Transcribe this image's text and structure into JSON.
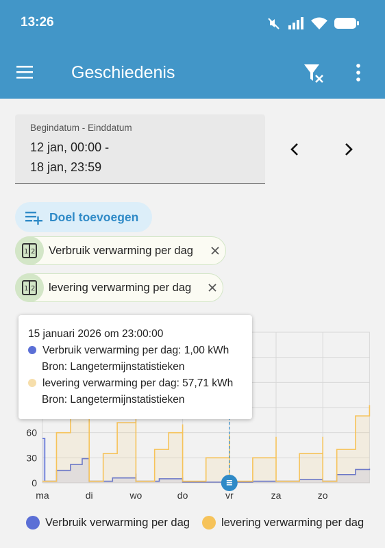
{
  "status_bar": {
    "time": "13:26"
  },
  "app_bar": {
    "title": "Geschiedenis"
  },
  "date_range": {
    "label": "Begindatum - Einddatum",
    "start": "12 jan, 00:00 -",
    "end": "18 jan, 23:59"
  },
  "add_target": {
    "label": "Doel toevoegen"
  },
  "chips": [
    {
      "label": "Verbruik verwarming per dag"
    },
    {
      "label": "levering verwarming per dag"
    }
  ],
  "tooltip": {
    "title": "15 januari 2026 om 23:00:00",
    "rows": [
      {
        "series": "Verbruik verwarming per dag: 1,00 kWh",
        "source": "Bron: Langetermijnstatistieken",
        "color": "#5b6fd6"
      },
      {
        "series": "levering verwarming per dag: 57,71 kWh",
        "source": "Bron: Langetermijnstatistieken",
        "color": "#f6deab"
      }
    ]
  },
  "chart_data": {
    "type": "line",
    "x_ticks": [
      "ma",
      "di",
      "wo",
      "do",
      "vr",
      "za",
      "zo"
    ],
    "y_ticks": [
      0,
      30,
      60
    ],
    "ylim": [
      0,
      180
    ],
    "series": [
      {
        "name": "Verbruik verwarming per dag",
        "color": "#5b6fd6",
        "points": [
          [
            0,
            53
          ],
          [
            0.05,
            2
          ],
          [
            0.3,
            15
          ],
          [
            0.6,
            22
          ],
          [
            0.85,
            29
          ],
          [
            1,
            29
          ],
          [
            1,
            2
          ],
          [
            1.5,
            6
          ],
          [
            2,
            11
          ],
          [
            2,
            2
          ],
          [
            2.5,
            5
          ],
          [
            3,
            7
          ],
          [
            3,
            1
          ],
          [
            3.5,
            1
          ],
          [
            4,
            1
          ],
          [
            4,
            1
          ],
          [
            4.5,
            2
          ],
          [
            5,
            3
          ],
          [
            5,
            2
          ],
          [
            5.5,
            4
          ],
          [
            6,
            6
          ],
          [
            6,
            2
          ],
          [
            6.3,
            10
          ],
          [
            6.7,
            16
          ],
          [
            7,
            17
          ]
        ]
      },
      {
        "name": "levering verwarming per dag",
        "color": "#f6c35a",
        "points": [
          [
            0,
            2
          ],
          [
            0.3,
            60
          ],
          [
            0.6,
            88
          ],
          [
            1,
            95
          ],
          [
            1,
            2
          ],
          [
            1.3,
            35
          ],
          [
            1.6,
            72
          ],
          [
            2,
            100
          ],
          [
            2,
            2
          ],
          [
            2.4,
            40
          ],
          [
            2.7,
            60
          ],
          [
            3,
            70
          ],
          [
            3,
            2
          ],
          [
            3.5,
            30
          ],
          [
            4,
            57.71
          ],
          [
            4,
            2
          ],
          [
            4.5,
            30
          ],
          [
            5,
            55
          ],
          [
            5,
            2
          ],
          [
            5.5,
            35
          ],
          [
            6,
            55
          ],
          [
            6,
            2
          ],
          [
            6.3,
            40
          ],
          [
            6.7,
            80
          ],
          [
            7,
            93
          ]
        ]
      }
    ],
    "selected_x": 4,
    "legend": [
      {
        "label": "Verbruik verwarming per dag",
        "color": "#5b6fd6"
      },
      {
        "label": "levering verwarming per dag",
        "color": "#f6c35a"
      }
    ]
  }
}
